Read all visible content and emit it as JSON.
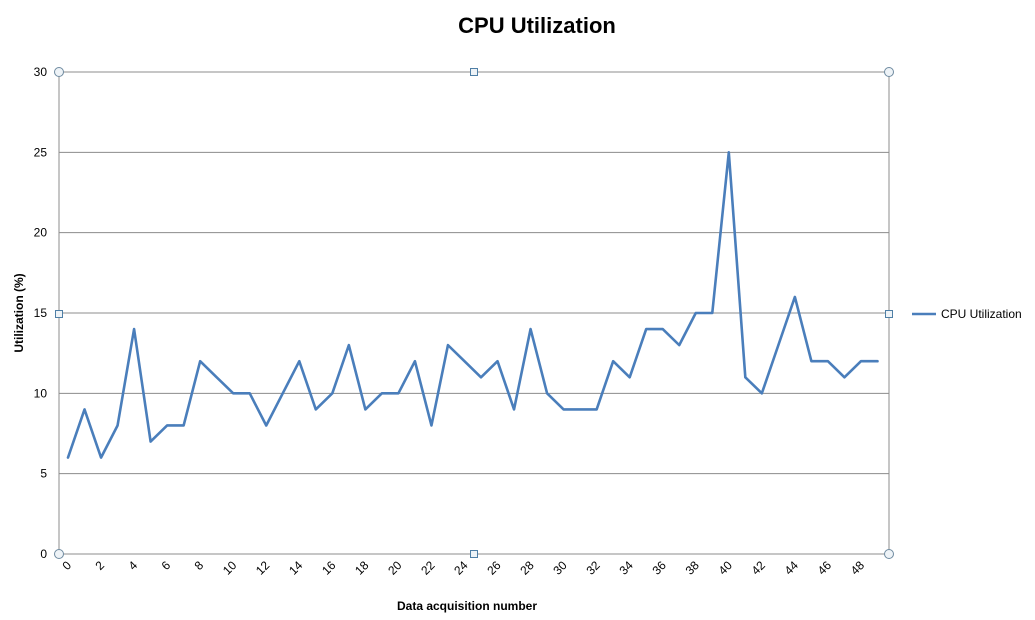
{
  "chart_data": {
    "type": "line",
    "title": "CPU Utilization",
    "xlabel": "Data acquisition number",
    "ylabel": "Utilization (%)",
    "x": [
      0,
      1,
      2,
      3,
      4,
      5,
      6,
      7,
      8,
      9,
      10,
      11,
      12,
      13,
      14,
      15,
      16,
      17,
      18,
      19,
      20,
      21,
      22,
      23,
      24,
      25,
      26,
      27,
      28,
      29,
      30,
      31,
      32,
      33,
      34,
      35,
      36,
      37,
      38,
      39,
      40,
      41,
      42,
      43,
      44,
      45,
      46,
      47,
      48,
      49
    ],
    "x_tick_labels": [
      "0",
      "2",
      "4",
      "6",
      "8",
      "10",
      "12",
      "14",
      "16",
      "18",
      "20",
      "22",
      "24",
      "26",
      "28",
      "30",
      "32",
      "34",
      "36",
      "38",
      "40",
      "42",
      "44",
      "46",
      "48"
    ],
    "y_tick_labels": [
      "0",
      "5",
      "10",
      "15",
      "20",
      "25",
      "30"
    ],
    "ylim": [
      0,
      30
    ],
    "grid": true,
    "legend_position": "right",
    "series": [
      {
        "name": "CPU Utilization",
        "color": "#4a7ebb",
        "values": [
          6,
          9,
          6,
          8,
          14,
          7,
          8,
          8,
          12,
          11,
          10,
          10,
          8,
          10,
          12,
          9,
          10,
          13,
          9,
          10,
          10,
          12,
          8,
          13,
          12,
          11,
          12,
          9,
          14,
          10,
          9,
          9,
          9,
          12,
          11,
          14,
          14,
          13,
          15,
          15,
          25,
          11,
          10,
          13,
          16,
          12,
          12,
          11,
          12,
          12
        ]
      }
    ]
  }
}
